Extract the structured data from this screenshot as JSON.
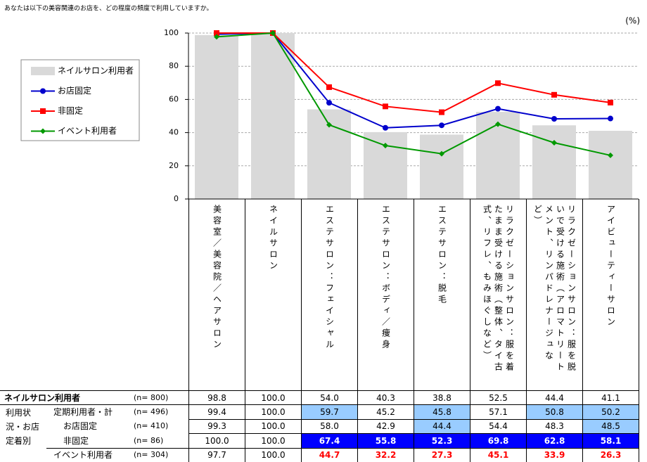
{
  "chart_data": {
    "type": "bar_line",
    "title": "あなたは以下の美容関連のお店を、どの程度の頻度で利用していますか。",
    "unit_label": "(%)",
    "categories": [
      "美容室／美容院／ヘアサロン",
      "ネイルサロン",
      "エステサロン：フェイシャル",
      "エステサロン：ボディ／痩身",
      "エステサロン：脱毛",
      "リラクゼーションサロン：服を着たまま受ける施術（整体、タイ古式、リフレ、もみほぐしなど）",
      "リラクゼーションサロン：服を脱いで受ける施術（アロマトリートメント、リンパドレナージュなど）",
      "アイビューティーサロン"
    ],
    "ylim": [
      0,
      100
    ],
    "yticks": [
      0,
      20,
      40,
      60,
      80,
      100
    ],
    "grid": true,
    "legend": "left",
    "series": [
      {
        "name": "ネイルサロン利用者",
        "type": "bar",
        "color": "#d9d9d9",
        "n": "(n= 800)",
        "values": [
          98.8,
          100.0,
          54.0,
          40.3,
          38.8,
          52.5,
          44.4,
          41.1
        ],
        "value_labels": [
          "98.8",
          "100.0",
          "54.0",
          "40.3",
          "38.8",
          "52.5",
          "44.4",
          "41.1"
        ]
      },
      {
        "name": "お店固定",
        "type": "line",
        "marker": "circle",
        "color": "#0000cc",
        "n": "(n= 410)",
        "values": [
          99.3,
          100.0,
          58.0,
          42.9,
          44.4,
          54.4,
          48.3,
          48.5
        ],
        "value_labels": [
          "99.3",
          "100.0",
          "58.0",
          "42.9",
          "44.4",
          "54.4",
          "48.3",
          "48.5"
        ],
        "cell_fills": [
          null,
          null,
          null,
          null,
          "#99ccff",
          null,
          null,
          "#99ccff"
        ]
      },
      {
        "name": "非固定",
        "type": "line",
        "marker": "square",
        "color": "#ff0000",
        "n": "(n= 86)",
        "values": [
          100.0,
          100.0,
          67.4,
          55.8,
          52.3,
          69.8,
          62.8,
          58.1
        ],
        "value_labels": [
          "100.0",
          "100.0",
          "67.4",
          "55.8",
          "52.3",
          "69.8",
          "62.8",
          "58.1"
        ],
        "cell_fills": [
          null,
          null,
          "#0000ff",
          "#0000ff",
          "#0000ff",
          "#0000ff",
          "#0000ff",
          "#0000ff"
        ],
        "cell_text_colors": [
          null,
          null,
          "#ffffff",
          "#ffffff",
          "#ffffff",
          "#ffffff",
          "#ffffff",
          "#ffffff"
        ]
      },
      {
        "name": "イベント利用者",
        "type": "line",
        "marker": "diamond",
        "color": "#009900",
        "n": "(n= 304)",
        "values": [
          97.7,
          100.0,
          44.7,
          32.2,
          27.3,
          45.1,
          33.9,
          26.3
        ],
        "value_labels": [
          "97.7",
          "100.0",
          "44.7",
          "32.2",
          "27.3",
          "45.1",
          "33.9",
          "26.3"
        ],
        "cell_text_colors": [
          null,
          null,
          "#ff0000",
          "#ff0000",
          "#ff0000",
          "#ff0000",
          "#ff0000",
          "#ff0000"
        ]
      }
    ]
  },
  "table": {
    "group_label": "利用状況・お店定着別",
    "extra_row": {
      "name": "定期利用者・計",
      "n": "(n= 496)",
      "value_labels": [
        "99.4",
        "100.0",
        "59.7",
        "45.2",
        "45.8",
        "57.1",
        "50.8",
        "50.2"
      ],
      "cell_fills": [
        null,
        null,
        "#99ccff",
        null,
        "#99ccff",
        null,
        "#99ccff",
        "#99ccff"
      ]
    }
  }
}
